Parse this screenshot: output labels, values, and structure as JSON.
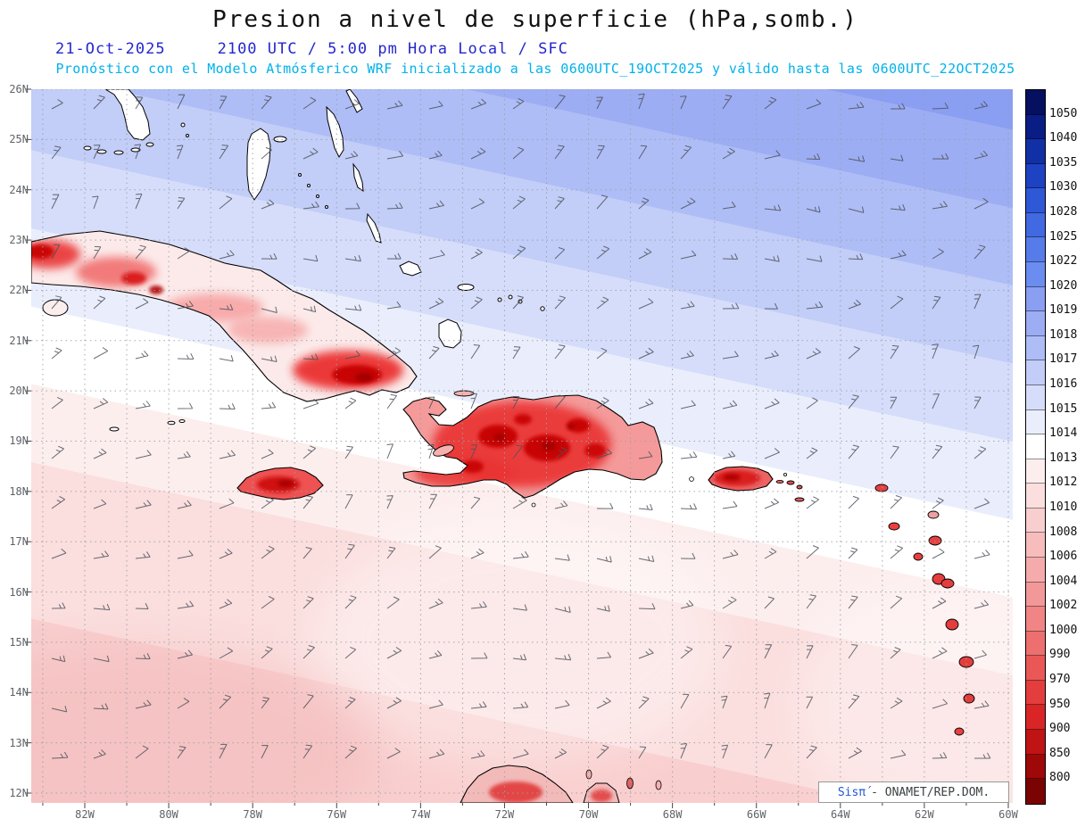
{
  "header": {
    "title": "Presion a nivel de superficie (hPa,somb.)",
    "date": "21-Oct-2025",
    "time_line": "2100 UTC / 5:00 pm Hora Local / SFC",
    "model_line": "Pronóstico con el Modelo Atmósferico WRF inicializado a las 0600UTC_19OCT2025 y válido hasta las 0600UTC_22OCT2025"
  },
  "map": {
    "lat_labels": [
      "26N",
      "25N",
      "24N",
      "23N",
      "22N",
      "21N",
      "20N",
      "19N",
      "18N",
      "17N",
      "16N",
      "15N",
      "14N",
      "13N",
      "12N"
    ],
    "lon_labels": [
      "82W",
      "80W",
      "78W",
      "76W",
      "74W",
      "72W",
      "70W",
      "68W",
      "66W",
      "64W",
      "62W",
      "60W"
    ],
    "wind_barbs": {
      "cols": 23,
      "rows": 14,
      "base_angle_deg": 28,
      "color": "#4d525a"
    },
    "attribution": {
      "logo": "Sisπ́",
      "text": "- ONAMET/REP.DOM."
    }
  },
  "colorbar": {
    "unit": "hPa",
    "labels": [
      "1050",
      "1040",
      "1035",
      "1030",
      "1028",
      "1025",
      "1022",
      "1020",
      "1019",
      "1018",
      "1017",
      "1016",
      "1015",
      "1014",
      "1013",
      "1012",
      "1010",
      "1008",
      "1006",
      "1004",
      "1002",
      "1000",
      "990",
      "970",
      "950",
      "900",
      "850",
      "800"
    ],
    "colors": [
      "#061060",
      "#0a1d85",
      "#1130a6",
      "#1d43c2",
      "#2f58d6",
      "#4169e2",
      "#567cea",
      "#6c8df0",
      "#8a9ef2",
      "#9cadf3",
      "#aebdf6",
      "#c2cdf8",
      "#d6ddfa",
      "#eaeefc",
      "#ffffff",
      "#fdeeee",
      "#fbdede",
      "#f9cece",
      "#f7bdbd",
      "#f5abab",
      "#f39898",
      "#f18484",
      "#ee6f6f",
      "#ea5757",
      "#e43d3d",
      "#d92525",
      "#c01313",
      "#9e0808",
      "#7a0303"
    ]
  }
}
